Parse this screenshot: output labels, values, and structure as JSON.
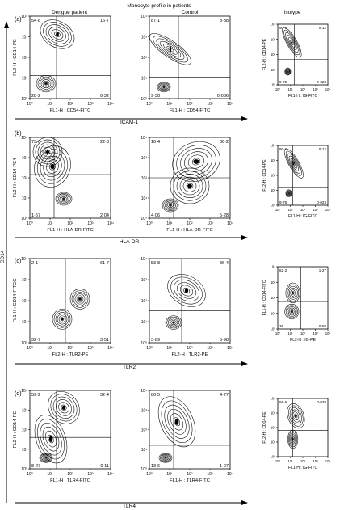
{
  "figure": {
    "title": "Monocyte profile in patients",
    "headers": [
      "Dengue patient",
      "Control",
      "Isotype"
    ],
    "y_axis_label": "CD14"
  },
  "panels": [
    {
      "letter": "(a)",
      "marker": "ICAM-1",
      "plots": [
        {
          "id": "a-dengue",
          "ylabel": "FL2-H : CD14-PE",
          "xlabel": "FL1-H : CD54-FITC",
          "q": {
            "ul": "54·8",
            "ur": "16·7",
            "ll": "28·2",
            "lr": "0·32"
          }
        },
        {
          "id": "a-control",
          "ylabel": "",
          "xlabel": "FL1-H : CD54-FITC",
          "q": {
            "ul": "87·1",
            "ur": "3·38",
            "ll": "9·38",
            "lr": "0·086"
          }
        },
        {
          "id": "a-isotype",
          "ylabel": "FL2-H : CD14-PE",
          "xlabel": "FL1-H : IG-FITC",
          "q": {
            "ul": "90·1",
            "ur": "0·12",
            "ll": "9·76",
            "lr": "0·023"
          }
        }
      ]
    },
    {
      "letter": "(b)",
      "marker": "HLA-DR",
      "plots": [
        {
          "id": "b-dengue",
          "ylabel": "FL2-H : CD14-PE4",
          "xlabel": "FL1-H : HLA-DR-FITC",
          "q": {
            "ul": "73·6",
            "ur": "22·8",
            "ll": "1·57",
            "lr": "2·04"
          }
        },
        {
          "id": "b-control",
          "ylabel": "",
          "xlabel": "FL1-H : HLA-DR-FITC",
          "q": {
            "ul": "10·4",
            "ur": "80·2",
            "ll": "4·06",
            "lr": "5·28"
          }
        },
        {
          "id": "b-isotype",
          "ylabel": "FL2-H : CD14-PE",
          "xlabel": "FL1-H : IG-FITC",
          "q": {
            "ul": "90·1",
            "ur": "0·12",
            "ll": "9·76",
            "lr": "0·023"
          }
        }
      ]
    },
    {
      "letter": "(c)",
      "marker": "TLR2",
      "plots": [
        {
          "id": "c-dengue",
          "ylabel": "FL1-H : CD14-FITCC",
          "xlabel": "FL2-H : TLR2-PE",
          "q": {
            "ul": "2·1",
            "ur": "61·7",
            "ll": "32·7",
            "lr": "3·51"
          }
        },
        {
          "id": "c-control",
          "ylabel": "",
          "xlabel": "FL2-H : TLR2-PE",
          "q": {
            "ul": "53·8",
            "ur": "36·4",
            "ll": "3·89",
            "lr": "5·98"
          }
        },
        {
          "id": "c-isotype",
          "ylabel": "FL1-H : CD14-FITC",
          "xlabel": "FL2-H : IG-PE",
          "q": {
            "ul": "62·2",
            "ur": "1·27",
            "ll": "36",
            "lr": "0·58"
          }
        }
      ]
    },
    {
      "letter": "(d)",
      "marker": "TLR4",
      "plots": [
        {
          "id": "d-dengue",
          "ylabel": "FL2-H : CD14-PE",
          "xlabel": "FL1-H : TLR4-FITC",
          "q": {
            "ul": "59·2",
            "ur": "32·4",
            "ll": "8·27",
            "lr": "0·11"
          }
        },
        {
          "id": "d-control",
          "ylabel": "",
          "xlabel": "FL1-H : TLR4-FITC",
          "q": {
            "ul": "80·5",
            "ur": "4·77",
            "ll": "13·6",
            "lr": "1·07"
          }
        },
        {
          "id": "d-isotype",
          "ylabel": "FL2-H : CD14-PE",
          "xlabel": "FL1-H : IG-FITC",
          "q": {
            "ul": "91·6",
            "ur": "0·038",
            "ll": "",
            "lr": ""
          }
        }
      ]
    }
  ],
  "tick_labels": [
    "10⁰",
    "10¹",
    "10²",
    "10³",
    "10⁴"
  ]
}
